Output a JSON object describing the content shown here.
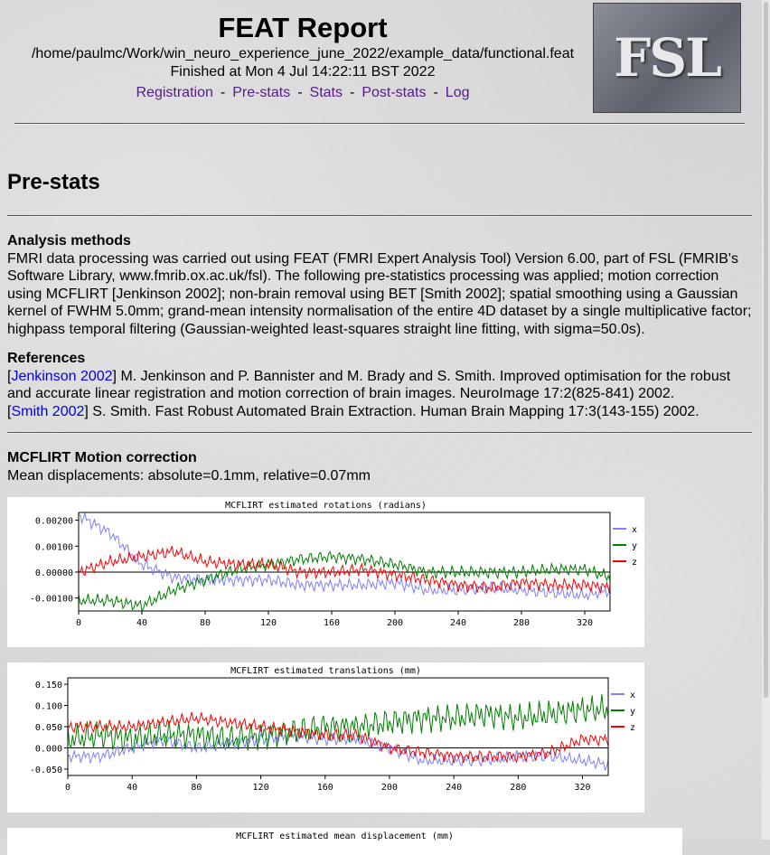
{
  "header": {
    "title": "FEAT Report",
    "path": "/home/paulmc/Work/win_neuro_experience_june_2022/example_data/functional.feat",
    "finished": "Finished at Mon 4 Jul 14:22:11 BST 2022",
    "nav": [
      "Registration",
      "Pre-stats",
      "Stats",
      "Post-stats",
      "Log"
    ],
    "sep": "-",
    "logo": "FSL"
  },
  "section_title": "Pre-stats",
  "analysis": {
    "heading": "Analysis methods",
    "text": "FMRI data processing was carried out using FEAT (FMRI Expert Analysis Tool) Version 6.00, part of FSL (FMRIB's Software Library, www.fmrib.ox.ac.uk/fsl). The following pre-statistics processing was applied; motion correction using MCFLIRT [Jenkinson 2002]; non-brain removal using BET [Smith 2002]; spatial smoothing using a Gaussian kernel of FWHM 5.0mm; grand-mean intensity normalisation of the entire 4D dataset by a single multiplicative factor; highpass temporal filtering (Gaussian-weighted least-squares straight line fitting, with sigma=50.0s)."
  },
  "references": {
    "heading": "References",
    "items": [
      {
        "link": "Jenkinson 2002",
        "text": "M. Jenkinson and P. Bannister and M. Brady and S. Smith. Improved optimisation for the robust and accurate linear registration and motion correction of brain images. NeuroImage 17:2(825-841) 2002."
      },
      {
        "link": "Smith 2002",
        "text": "S. Smith. Fast Robust Automated Brain Extraction. Human Brain Mapping 17:3(143-155) 2002."
      }
    ]
  },
  "mcflirt": {
    "heading": "MCFLIRT Motion correction",
    "summary": "Mean displacements: absolute=0.1mm, relative=0.07mm"
  },
  "chart_data": [
    {
      "type": "line",
      "title": "MCFLIRT estimated rotations (radians)",
      "xlim": [
        0,
        336
      ],
      "ylim": [
        -0.0015,
        0.0023
      ],
      "xticks": [
        "0",
        "40",
        "80",
        "120",
        "160",
        "200",
        "240",
        "280",
        "320"
      ],
      "yticks": [
        "0.00200",
        "0.00100",
        "0.00000",
        "-0.00100"
      ],
      "ytick_values": [
        0.002,
        0.001,
        0,
        -0.001
      ],
      "x": [
        0,
        20,
        40,
        60,
        80,
        100,
        120,
        140,
        160,
        180,
        200,
        220,
        240,
        260,
        280,
        300,
        320,
        336
      ],
      "series": [
        {
          "name": "x",
          "color": "#7f7fff",
          "values": [
            0.0022,
            0.0015,
            0.0003,
            -0.0002,
            -0.0003,
            -0.0003,
            -0.0003,
            -0.0005,
            -0.0005,
            -0.0005,
            -0.0004,
            -0.0007,
            -0.0007,
            -0.0006,
            -0.0007,
            -0.0008,
            -0.0009,
            -0.0007
          ]
        },
        {
          "name": "y",
          "color": "#007f00",
          "values": [
            -0.0011,
            -0.0011,
            -0.0013,
            -0.0007,
            -0.0003,
            0.0001,
            0.0003,
            0.0005,
            0.0006,
            0.0005,
            0.0003,
            0.0,
            0.0,
            0.0,
            0.0,
            0.0001,
            0.0001,
            -0.0002
          ]
        },
        {
          "name": "z",
          "color": "#ff0000",
          "values": [
            0.0,
            0.0004,
            0.0006,
            0.0008,
            0.0004,
            0.0003,
            0.0003,
            0.0,
            0.0,
            0.0001,
            -0.0001,
            -0.0003,
            -0.0005,
            -0.0006,
            -0.0004,
            -0.0005,
            -0.0005,
            -0.0006
          ]
        }
      ]
    },
    {
      "type": "line",
      "title": "MCFLIRT estimated translations (mm)",
      "xlim": [
        0,
        336
      ],
      "ylim": [
        -0.065,
        0.165
      ],
      "xticks": [
        "0",
        "40",
        "80",
        "120",
        "160",
        "200",
        "240",
        "280",
        "320"
      ],
      "yticks": [
        "0.150",
        "0.100",
        "0.050",
        "0.000",
        "-0.050"
      ],
      "ytick_values": [
        0.15,
        0.1,
        0.05,
        0,
        -0.05
      ],
      "x": [
        0,
        20,
        40,
        60,
        80,
        100,
        120,
        140,
        160,
        180,
        200,
        220,
        240,
        260,
        280,
        300,
        320,
        336
      ],
      "series": [
        {
          "name": "x",
          "color": "#7f7fff",
          "values": [
            -0.02,
            -0.02,
            0.0,
            0.02,
            0.0,
            0.01,
            0.02,
            0.03,
            0.02,
            0.02,
            0.0,
            -0.03,
            -0.03,
            -0.03,
            -0.02,
            -0.02,
            -0.03,
            -0.04
          ]
        },
        {
          "name": "y",
          "color": "#007f00",
          "values": [
            0.02,
            0.03,
            0.02,
            0.03,
            0.03,
            0.02,
            0.03,
            0.04,
            0.05,
            0.05,
            0.06,
            0.07,
            0.07,
            0.08,
            0.07,
            0.08,
            0.09,
            0.09
          ]
        },
        {
          "name": "z",
          "color": "#ff0000",
          "values": [
            0.05,
            0.05,
            0.05,
            0.06,
            0.07,
            0.06,
            0.05,
            0.04,
            0.03,
            0.03,
            0.0,
            -0.01,
            -0.02,
            -0.02,
            -0.02,
            -0.01,
            0.02,
            0.02
          ]
        }
      ]
    },
    {
      "type": "line",
      "title": "MCFLIRT estimated mean displacement (mm)"
    }
  ]
}
